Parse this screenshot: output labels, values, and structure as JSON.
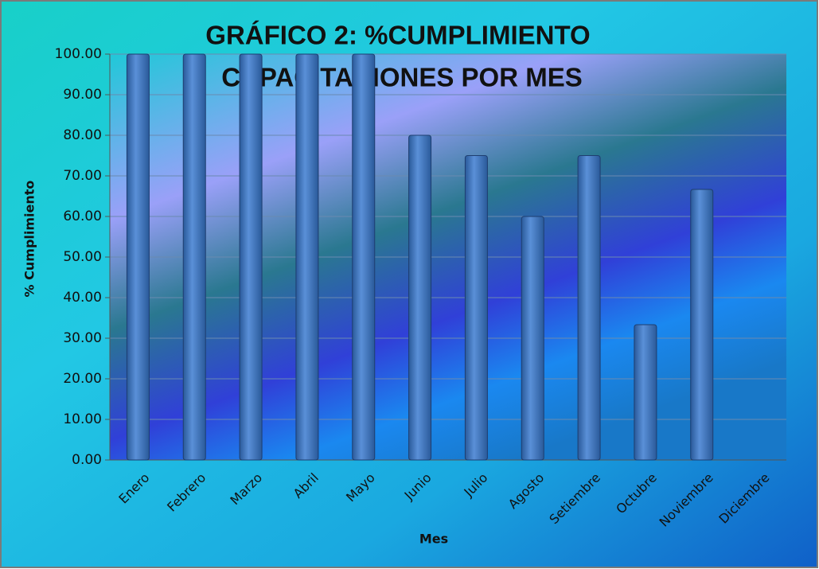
{
  "chart_data": {
    "type": "bar",
    "title": [
      "GRÁFICO 2: %CUMPLIMIENTO",
      "CAPACITACIONES POR MES"
    ],
    "x_label": "Mes",
    "y_label": "% Cumplimiento",
    "categories": [
      "Enero",
      "Febrero",
      "Marzo",
      "Abril",
      "Mayo",
      "Junio",
      "Julio",
      "Agosto",
      "Setiembre",
      "Octubre",
      "Noviembre",
      "Diciembre"
    ],
    "values": [
      100,
      100,
      100,
      100,
      100,
      80,
      75,
      60,
      75,
      33.33,
      66.67,
      null
    ],
    "color": "#4a7fc8",
    "ylim": [
      0,
      100
    ],
    "yticks": [
      {
        "value": 0,
        "label": "0.00"
      },
      {
        "value": 10,
        "label": "10.00"
      },
      {
        "value": 20,
        "label": "20.00"
      },
      {
        "value": 30,
        "label": "30.00"
      },
      {
        "value": 40,
        "label": "40.00"
      },
      {
        "value": 50,
        "label": "50.00"
      },
      {
        "value": 60,
        "label": "60.00"
      },
      {
        "value": 70,
        "label": "70.00"
      },
      {
        "value": 80,
        "label": "80.00"
      },
      {
        "value": 90,
        "label": "90.00"
      },
      {
        "value": 100,
        "label": "100.00"
      }
    ],
    "grid": true
  }
}
